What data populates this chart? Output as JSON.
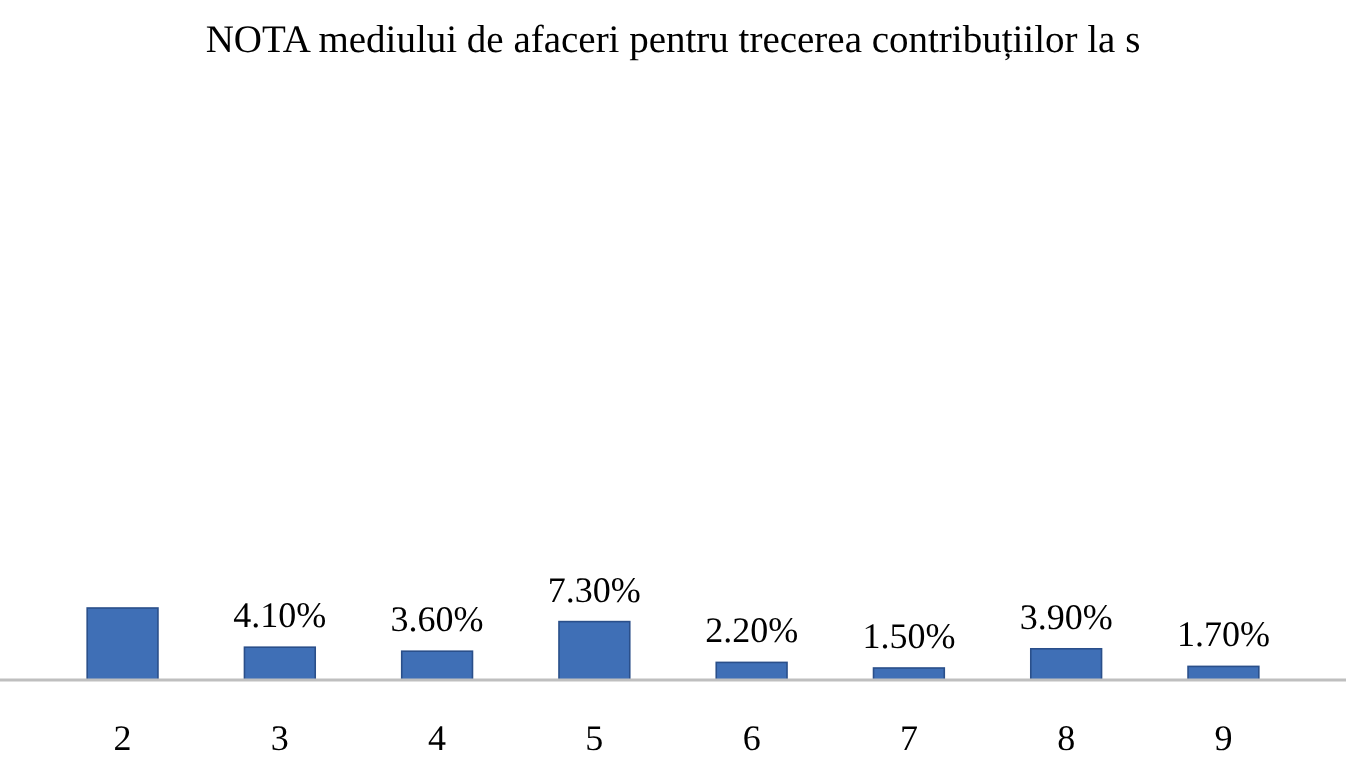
{
  "chart_data": {
    "type": "bar",
    "title": "NOTA mediului de afaceri pentru trecerea contribuțiilor la s",
    "categories": [
      "2",
      "3",
      "4",
      "5",
      "6",
      "7",
      "8",
      "9"
    ],
    "values": [
      9.0,
      4.1,
      3.6,
      7.3,
      2.2,
      1.5,
      3.9,
      1.7
    ],
    "value_labels": [
      null,
      "4.10%",
      "3.60%",
      "7.30%",
      "2.20%",
      "1.50%",
      "3.90%",
      "1.70%"
    ],
    "color": "#3f6fb6"
  }
}
